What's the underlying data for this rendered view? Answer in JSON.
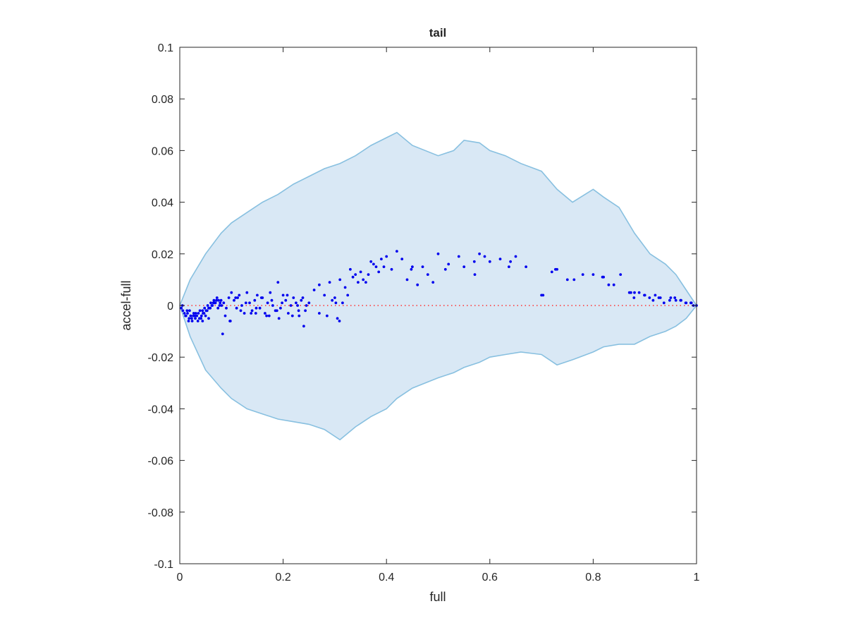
{
  "chart_data": {
    "type": "scatter",
    "title": "tail",
    "xlabel": "full",
    "ylabel": "accel-full",
    "xlim": [
      0,
      1
    ],
    "ylim": [
      -0.1,
      0.1
    ],
    "xticks": [
      0,
      0.2,
      0.4,
      0.6,
      0.8,
      1
    ],
    "xtick_labels": [
      "0",
      "0.2",
      "0.4",
      "0.6",
      "0.8",
      "1"
    ],
    "yticks": [
      -0.1,
      -0.08,
      -0.06,
      -0.04,
      -0.02,
      0,
      0.02,
      0.04,
      0.06,
      0.08,
      0.1
    ],
    "ytick_labels": [
      "-0.1",
      "-0.08",
      "-0.06",
      "-0.04",
      "-0.02",
      "0",
      "0.02",
      "0.04",
      "0.06",
      "0.08",
      "0.1"
    ],
    "grid": false,
    "colors": {
      "band_fill": "#d9e8f5",
      "band_edge": "#88c0e0",
      "points": "#0000ee",
      "reference_line": "#ff3333",
      "axes": "#262626"
    },
    "reference_line": {
      "y": 0,
      "style": "dotted"
    },
    "envelope": {
      "x": [
        0,
        0.02,
        0.05,
        0.08,
        0.1,
        0.13,
        0.16,
        0.19,
        0.22,
        0.25,
        0.28,
        0.31,
        0.34,
        0.37,
        0.4,
        0.42,
        0.45,
        0.5,
        0.53,
        0.55,
        0.58,
        0.6,
        0.63,
        0.66,
        0.7,
        0.73,
        0.76,
        0.8,
        0.82,
        0.85,
        0.88,
        0.91,
        0.94,
        0.96,
        0.98,
        1.0
      ],
      "upper": [
        0.0,
        0.01,
        0.02,
        0.028,
        0.032,
        0.036,
        0.04,
        0.043,
        0.047,
        0.05,
        0.053,
        0.055,
        0.058,
        0.062,
        0.065,
        0.067,
        0.062,
        0.058,
        0.06,
        0.064,
        0.063,
        0.06,
        0.058,
        0.055,
        0.052,
        0.045,
        0.04,
        0.045,
        0.042,
        0.038,
        0.028,
        0.02,
        0.016,
        0.012,
        0.006,
        0.0
      ],
      "lower": [
        0.0,
        -0.012,
        -0.025,
        -0.032,
        -0.036,
        -0.04,
        -0.042,
        -0.044,
        -0.045,
        -0.046,
        -0.048,
        -0.052,
        -0.047,
        -0.043,
        -0.04,
        -0.036,
        -0.032,
        -0.028,
        -0.026,
        -0.024,
        -0.022,
        -0.02,
        -0.019,
        -0.018,
        -0.019,
        -0.023,
        -0.021,
        -0.018,
        -0.016,
        -0.015,
        -0.015,
        -0.012,
        -0.01,
        -0.008,
        -0.005,
        0.0
      ]
    },
    "series": [
      {
        "x": [
          0.003,
          0.006,
          0.009,
          0.012,
          0.015,
          0.018,
          0.021,
          0.024,
          0.027,
          0.03,
          0.033,
          0.036,
          0.039,
          0.042,
          0.045,
          0.048,
          0.051,
          0.054,
          0.057,
          0.06,
          0.063,
          0.066,
          0.069,
          0.072,
          0.075,
          0.078,
          0.081,
          0.005,
          0.011,
          0.017,
          0.023,
          0.029,
          0.035,
          0.041,
          0.047,
          0.053,
          0.059,
          0.065,
          0.071,
          0.077,
          0.014,
          0.026,
          0.038,
          0.044,
          0.05,
          0.056,
          0.062,
          0.068,
          0.074,
          0.08,
          0.085,
          0.09,
          0.095,
          0.1,
          0.105,
          0.11,
          0.115,
          0.12,
          0.125,
          0.13,
          0.135,
          0.14,
          0.145,
          0.15,
          0.155,
          0.16,
          0.165,
          0.17,
          0.175,
          0.18,
          0.185,
          0.19,
          0.195,
          0.2,
          0.205,
          0.21,
          0.215,
          0.22,
          0.225,
          0.23,
          0.235,
          0.24,
          0.245,
          0.25,
          0.088,
          0.098,
          0.108,
          0.118,
          0.128,
          0.138,
          0.148,
          0.158,
          0.168,
          0.178,
          0.188,
          0.198,
          0.208,
          0.218,
          0.228,
          0.238,
          0.26,
          0.27,
          0.28,
          0.29,
          0.3,
          0.31,
          0.32,
          0.33,
          0.34,
          0.35,
          0.36,
          0.37,
          0.38,
          0.39,
          0.27,
          0.285,
          0.295,
          0.305,
          0.315,
          0.325,
          0.335,
          0.345,
          0.355,
          0.365,
          0.375,
          0.385,
          0.395,
          0.4,
          0.41,
          0.42,
          0.43,
          0.44,
          0.45,
          0.46,
          0.47,
          0.48,
          0.49,
          0.5,
          0.52,
          0.54,
          0.55,
          0.57,
          0.58,
          0.59,
          0.6,
          0.62,
          0.64,
          0.65,
          0.67,
          0.7,
          0.72,
          0.73,
          0.75,
          0.78,
          0.8,
          0.82,
          0.83,
          0.84,
          0.87,
          0.88,
          0.9,
          0.92,
          0.93,
          0.95,
          0.96,
          0.97,
          0.98,
          0.99,
          1.0,
          0.056,
          0.031,
          0.044,
          0.019,
          0.067,
          0.083,
          0.097,
          0.112,
          0.147,
          0.173,
          0.192,
          0.231,
          0.243,
          0.302,
          0.309,
          0.448,
          0.514,
          0.571,
          0.637,
          0.703,
          0.727,
          0.763,
          0.818,
          0.853,
          0.873,
          0.879,
          0.889,
          0.899,
          0.909,
          0.916,
          0.927,
          0.937,
          0.948,
          0.958,
          0.969,
          0.979,
          0.989,
          0.994
        ],
        "y": [
          -0.001,
          -0.002,
          -0.003,
          -0.004,
          -0.003,
          -0.005,
          -0.004,
          -0.006,
          -0.003,
          -0.005,
          -0.004,
          -0.003,
          -0.002,
          -0.004,
          -0.003,
          -0.001,
          -0.002,
          0.0,
          -0.001,
          0.001,
          0.0,
          0.002,
          0.001,
          0.003,
          0.002,
          0.001,
          0.0,
          0.0,
          -0.004,
          -0.006,
          -0.005,
          -0.004,
          -0.006,
          -0.005,
          -0.003,
          -0.002,
          -0.001,
          0.001,
          0.002,
          0.0,
          -0.002,
          -0.004,
          -0.005,
          -0.002,
          -0.004,
          -0.001,
          0.0,
          0.001,
          -0.001,
          0.002,
          0.001,
          -0.001,
          0.003,
          0.005,
          0.002,
          -0.001,
          0.004,
          0.0,
          -0.003,
          0.005,
          0.001,
          -0.002,
          0.002,
          0.004,
          -0.001,
          0.003,
          -0.003,
          0.001,
          0.005,
          0.0,
          -0.002,
          0.009,
          -0.001,
          0.004,
          0.002,
          -0.003,
          0.0,
          0.003,
          0.001,
          -0.002,
          0.002,
          -0.008,
          0.0,
          0.001,
          -0.004,
          -0.006,
          0.003,
          -0.002,
          0.001,
          -0.003,
          -0.001,
          0.003,
          -0.004,
          0.002,
          -0.002,
          0.001,
          0.004,
          -0.004,
          0.0,
          0.003,
          0.006,
          0.008,
          0.004,
          0.009,
          0.003,
          0.01,
          0.007,
          0.014,
          0.012,
          0.013,
          0.009,
          0.017,
          0.015,
          0.018,
          -0.003,
          -0.004,
          0.002,
          -0.005,
          0.001,
          0.004,
          0.011,
          0.009,
          0.01,
          0.012,
          0.016,
          0.013,
          0.015,
          0.019,
          0.014,
          0.021,
          0.018,
          0.01,
          0.015,
          0.008,
          0.015,
          0.012,
          0.009,
          0.02,
          0.016,
          0.019,
          0.015,
          0.017,
          0.02,
          0.019,
          0.017,
          0.018,
          0.017,
          0.019,
          0.015,
          0.004,
          0.013,
          0.014,
          0.01,
          0.012,
          0.012,
          0.011,
          0.008,
          0.008,
          0.005,
          0.005,
          0.004,
          0.004,
          0.003,
          0.003,
          0.002,
          0.002,
          0.001,
          0.001,
          0.0,
          -0.005,
          -0.003,
          -0.006,
          -0.002,
          0.001,
          -0.011,
          -0.006,
          0.003,
          -0.003,
          -0.004,
          -0.005,
          -0.004,
          -0.002,
          0.001,
          -0.006,
          0.014,
          0.014,
          0.012,
          0.015,
          0.004,
          0.014,
          0.01,
          0.011,
          0.012,
          0.005,
          0.003,
          0.005,
          0.004,
          0.003,
          0.002,
          0.003,
          0.001,
          0.002,
          0.003,
          0.002,
          0.001,
          0.001,
          0.0
        ]
      }
    ]
  }
}
